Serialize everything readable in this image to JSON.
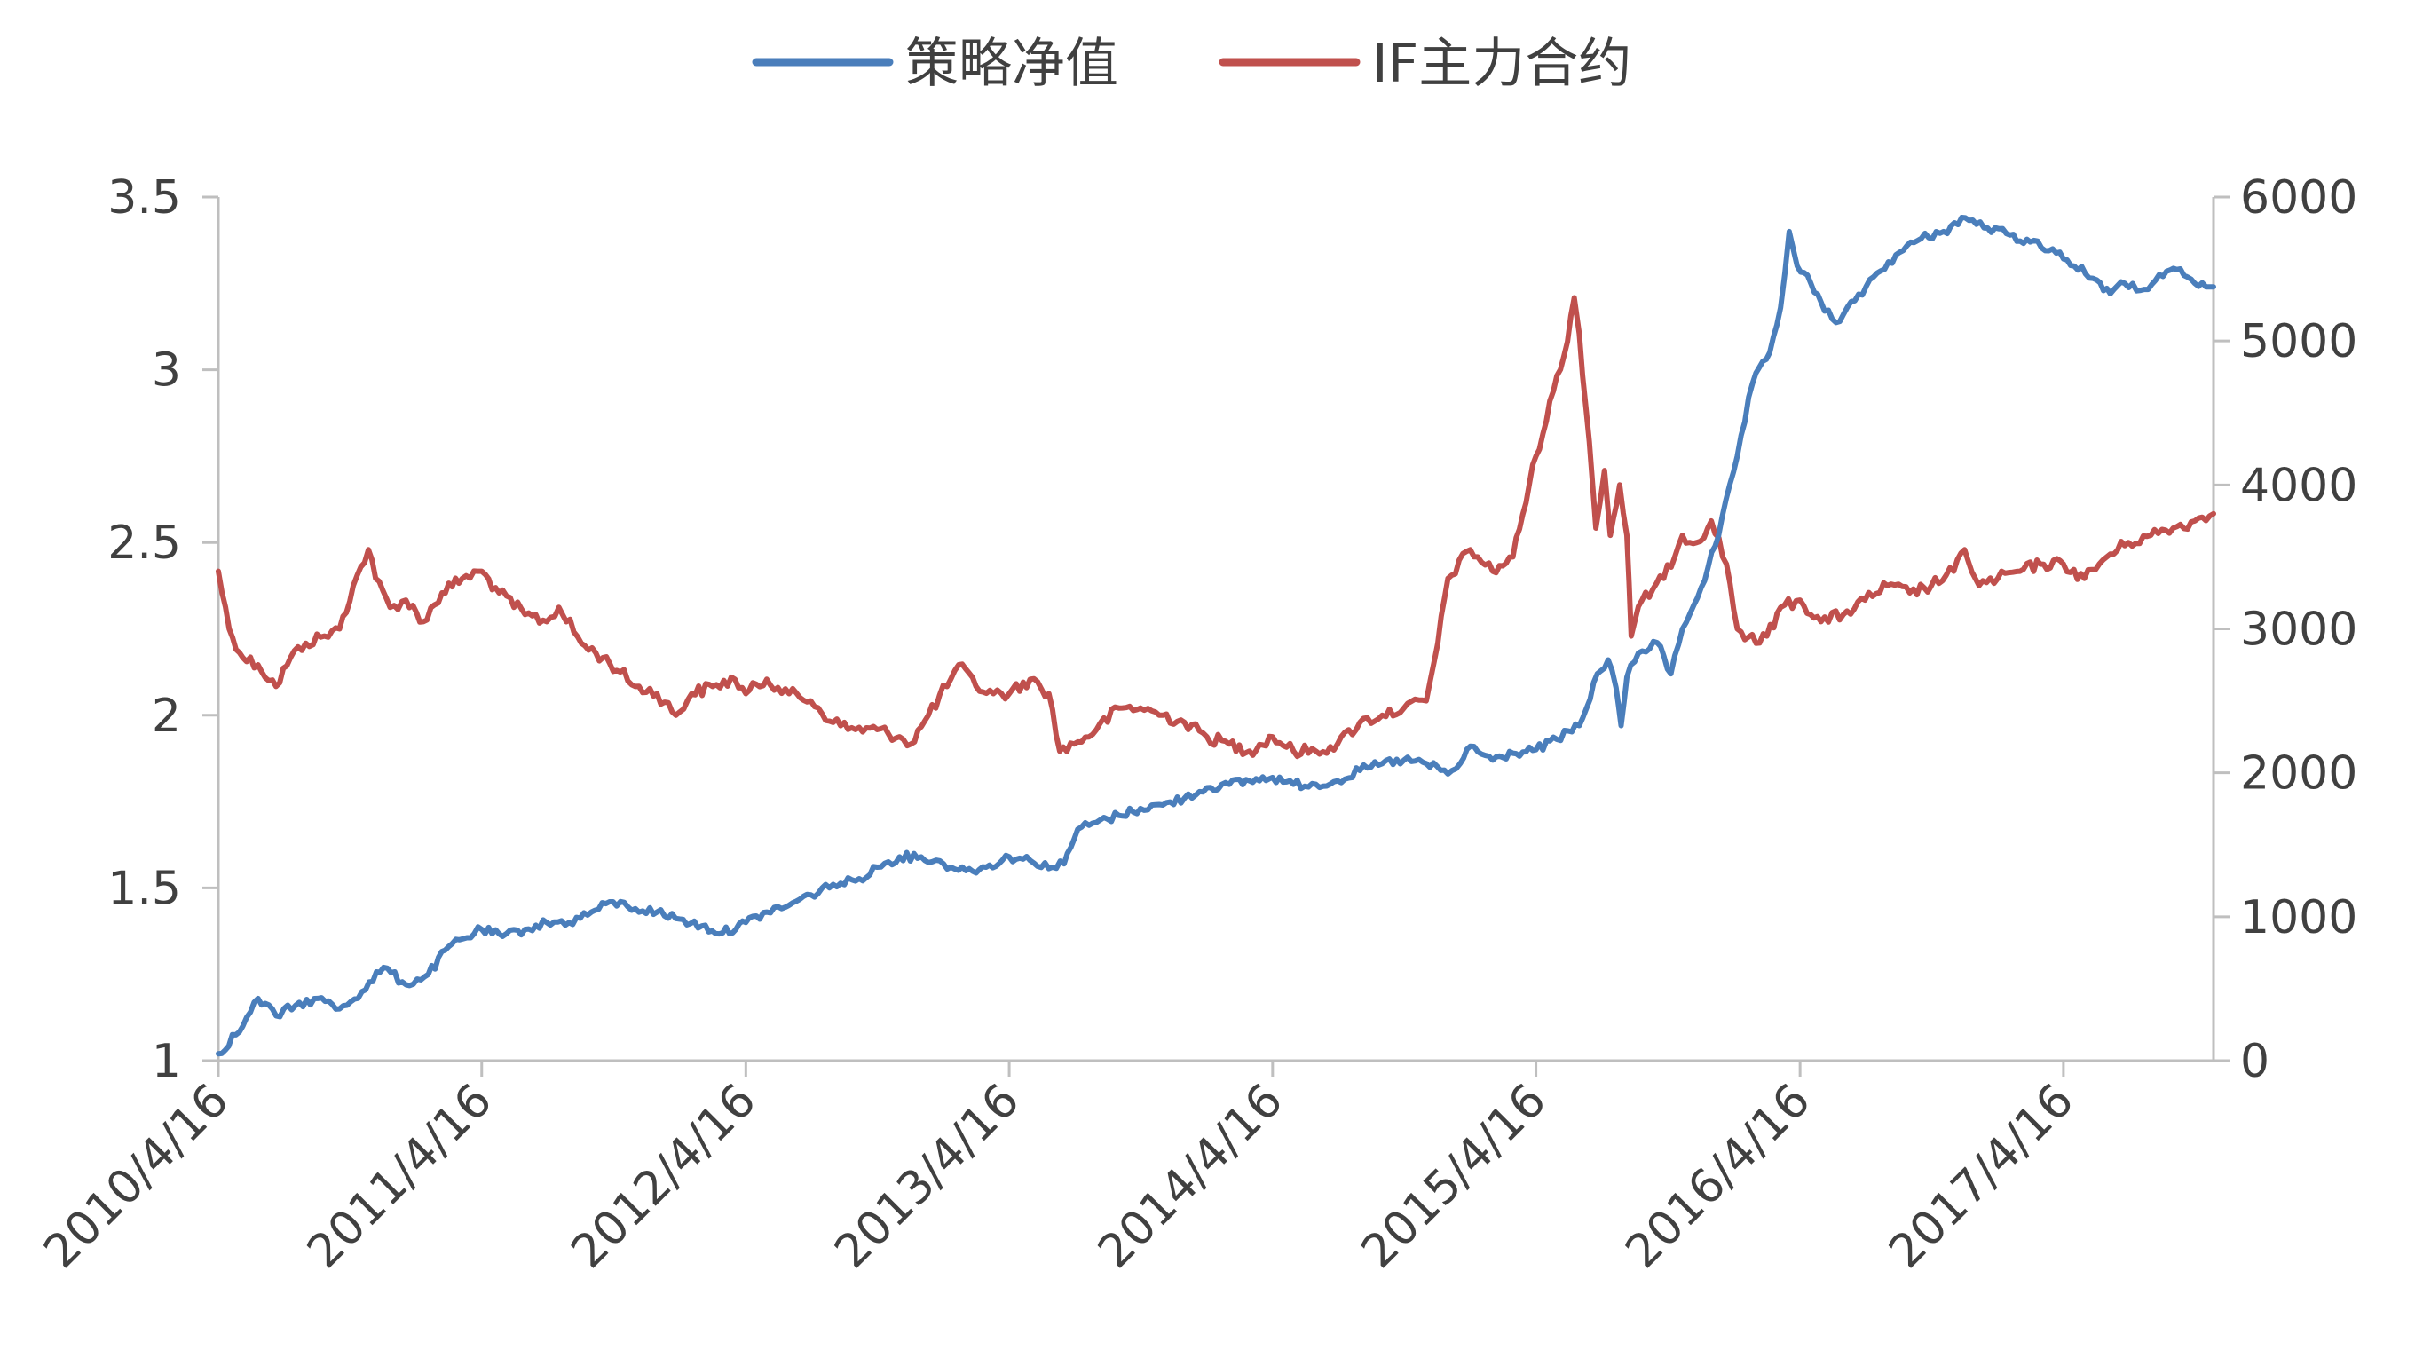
{
  "chart_data": {
    "type": "line",
    "title": "",
    "xlabel": "",
    "ylabel": "",
    "y2label": "",
    "grid": false,
    "legend_position": "top-center",
    "x_ticks": [
      "2010/4/16",
      "2011/4/16",
      "2012/4/16",
      "2013/4/16",
      "2014/4/16",
      "2015/4/16",
      "2016/4/16",
      "2017/4/16"
    ],
    "x_range": [
      "2010/4/16",
      "2017/11/10"
    ],
    "y_left": {
      "range": [
        1,
        3.5
      ],
      "ticks": [
        "1",
        "1.5",
        "2",
        "2.5",
        "3",
        "3.5"
      ]
    },
    "y_right": {
      "range": [
        0,
        6000
      ],
      "ticks": [
        "0",
        "1000",
        "2000",
        "3000",
        "4000",
        "5000",
        "6000"
      ]
    },
    "series": [
      {
        "name": "策略净值",
        "axis": "left",
        "color": "#4a7ebb",
        "points": [
          [
            "2010-04-16",
            1.02
          ],
          [
            "2010-05-20",
            1.1
          ],
          [
            "2010-06-10",
            1.18
          ],
          [
            "2010-07-05",
            1.13
          ],
          [
            "2010-08-01",
            1.16
          ],
          [
            "2010-09-01",
            1.18
          ],
          [
            "2010-10-01",
            1.15
          ],
          [
            "2010-11-01",
            1.2
          ],
          [
            "2010-12-01",
            1.27
          ],
          [
            "2011-01-01",
            1.22
          ],
          [
            "2011-02-01",
            1.25
          ],
          [
            "2011-03-01",
            1.33
          ],
          [
            "2011-04-16",
            1.38
          ],
          [
            "2011-05-15",
            1.36
          ],
          [
            "2011-06-15",
            1.38
          ],
          [
            "2011-07-15",
            1.4
          ],
          [
            "2011-08-15",
            1.4
          ],
          [
            "2011-09-15",
            1.43
          ],
          [
            "2011-10-15",
            1.46
          ],
          [
            "2011-11-15",
            1.44
          ],
          [
            "2011-12-15",
            1.43
          ],
          [
            "2012-01-15",
            1.41
          ],
          [
            "2012-02-15",
            1.39
          ],
          [
            "2012-03-15",
            1.37
          ],
          [
            "2012-04-16",
            1.4
          ],
          [
            "2012-05-15",
            1.43
          ],
          [
            "2012-06-15",
            1.45
          ],
          [
            "2012-07-15",
            1.48
          ],
          [
            "2012-08-15",
            1.51
          ],
          [
            "2012-09-15",
            1.52
          ],
          [
            "2012-10-15",
            1.56
          ],
          [
            "2012-11-15",
            1.59
          ],
          [
            "2012-12-15",
            1.59
          ],
          [
            "2013-01-15",
            1.57
          ],
          [
            "2013-02-15",
            1.55
          ],
          [
            "2013-03-15",
            1.56
          ],
          [
            "2013-04-16",
            1.59
          ],
          [
            "2013-05-15",
            1.58
          ],
          [
            "2013-06-15",
            1.56
          ],
          [
            "2013-07-01",
            1.57
          ],
          [
            "2013-07-20",
            1.67
          ],
          [
            "2013-08-15",
            1.69
          ],
          [
            "2013-09-15",
            1.71
          ],
          [
            "2013-10-15",
            1.73
          ],
          [
            "2013-11-15",
            1.74
          ],
          [
            "2013-12-15",
            1.76
          ],
          [
            "2014-01-15",
            1.79
          ],
          [
            "2014-02-15",
            1.8
          ],
          [
            "2014-03-15",
            1.81
          ],
          [
            "2014-04-16",
            1.82
          ],
          [
            "2014-05-15",
            1.8
          ],
          [
            "2014-06-15",
            1.8
          ],
          [
            "2014-07-15",
            1.81
          ],
          [
            "2014-08-15",
            1.84
          ],
          [
            "2014-09-15",
            1.86
          ],
          [
            "2014-10-15",
            1.87
          ],
          [
            "2014-11-15",
            1.86
          ],
          [
            "2014-12-15",
            1.83
          ],
          [
            "2015-01-01",
            1.86
          ],
          [
            "2015-01-15",
            1.91
          ],
          [
            "2015-02-15",
            1.87
          ],
          [
            "2015-03-15",
            1.89
          ],
          [
            "2015-04-16",
            1.9
          ],
          [
            "2015-05-15",
            1.93
          ],
          [
            "2015-06-15",
            1.97
          ],
          [
            "2015-06-25",
            2.02
          ],
          [
            "2015-07-10",
            2.12
          ],
          [
            "2015-07-25",
            2.16
          ],
          [
            "2015-08-05",
            2.08
          ],
          [
            "2015-08-12",
            1.97
          ],
          [
            "2015-08-20",
            2.11
          ],
          [
            "2015-09-05",
            2.18
          ],
          [
            "2015-10-01",
            2.21
          ],
          [
            "2015-10-20",
            2.12
          ],
          [
            "2015-11-05",
            2.25
          ],
          [
            "2015-12-01",
            2.37
          ],
          [
            "2015-12-25",
            2.52
          ],
          [
            "2016-01-20",
            2.75
          ],
          [
            "2016-02-10",
            2.96
          ],
          [
            "2016-03-05",
            3.05
          ],
          [
            "2016-03-20",
            3.18
          ],
          [
            "2016-04-01",
            3.4
          ],
          [
            "2016-04-12",
            3.3
          ],
          [
            "2016-05-01",
            3.25
          ],
          [
            "2016-05-20",
            3.17
          ],
          [
            "2016-06-10",
            3.14
          ],
          [
            "2016-07-01",
            3.2
          ],
          [
            "2016-08-01",
            3.28
          ],
          [
            "2016-09-01",
            3.34
          ],
          [
            "2016-10-01",
            3.38
          ],
          [
            "2016-11-01",
            3.4
          ],
          [
            "2016-12-01",
            3.44
          ],
          [
            "2017-01-01",
            3.41
          ],
          [
            "2017-02-01",
            3.39
          ],
          [
            "2017-03-01",
            3.37
          ],
          [
            "2017-04-01",
            3.35
          ],
          [
            "2017-05-01",
            3.3
          ],
          [
            "2017-06-01",
            3.26
          ],
          [
            "2017-06-20",
            3.22
          ],
          [
            "2017-07-10",
            3.25
          ],
          [
            "2017-08-01",
            3.23
          ],
          [
            "2017-09-01",
            3.27
          ],
          [
            "2017-09-20",
            3.29
          ],
          [
            "2017-10-15",
            3.25
          ],
          [
            "2017-11-10",
            3.24
          ]
        ]
      },
      {
        "name": "IF主力合约",
        "axis": "right",
        "color": "#c0504d",
        "points": [
          [
            "2010-04-16",
            3400
          ],
          [
            "2010-05-01",
            3000
          ],
          [
            "2010-05-20",
            2800
          ],
          [
            "2010-06-10",
            2750
          ],
          [
            "2010-07-05",
            2600
          ],
          [
            "2010-07-25",
            2800
          ],
          [
            "2010-08-15",
            2900
          ],
          [
            "2010-09-10",
            2950
          ],
          [
            "2010-10-01",
            3000
          ],
          [
            "2010-10-20",
            3300
          ],
          [
            "2010-11-10",
            3550
          ],
          [
            "2010-11-20",
            3350
          ],
          [
            "2010-12-10",
            3150
          ],
          [
            "2011-01-01",
            3200
          ],
          [
            "2011-01-25",
            3050
          ],
          [
            "2011-02-20",
            3250
          ],
          [
            "2011-03-20",
            3350
          ],
          [
            "2011-04-16",
            3400
          ],
          [
            "2011-05-10",
            3250
          ],
          [
            "2011-06-15",
            3100
          ],
          [
            "2011-07-15",
            3050
          ],
          [
            "2011-08-01",
            3150
          ],
          [
            "2011-09-01",
            2900
          ],
          [
            "2011-10-01",
            2800
          ],
          [
            "2011-10-25",
            2700
          ],
          [
            "2011-11-15",
            2600
          ],
          [
            "2011-12-15",
            2550
          ],
          [
            "2012-01-10",
            2400
          ],
          [
            "2012-02-01",
            2550
          ],
          [
            "2012-03-01",
            2600
          ],
          [
            "2012-04-01",
            2650
          ],
          [
            "2012-04-16",
            2550
          ],
          [
            "2012-05-15",
            2650
          ],
          [
            "2012-06-15",
            2550
          ],
          [
            "2012-07-15",
            2500
          ],
          [
            "2012-08-15",
            2350
          ],
          [
            "2012-09-15",
            2300
          ],
          [
            "2012-10-15",
            2300
          ],
          [
            "2012-11-15",
            2250
          ],
          [
            "2012-12-01",
            2200
          ],
          [
            "2012-12-25",
            2400
          ],
          [
            "2013-01-25",
            2650
          ],
          [
            "2013-02-05",
            2750
          ],
          [
            "2013-03-01",
            2600
          ],
          [
            "2013-03-25",
            2550
          ],
          [
            "2013-04-16",
            2550
          ],
          [
            "2013-05-15",
            2650
          ],
          [
            "2013-06-10",
            2550
          ],
          [
            "2013-06-25",
            2150
          ],
          [
            "2013-07-15",
            2200
          ],
          [
            "2013-08-15",
            2300
          ],
          [
            "2013-09-15",
            2450
          ],
          [
            "2013-10-15",
            2450
          ],
          [
            "2013-11-15",
            2400
          ],
          [
            "2013-12-15",
            2350
          ],
          [
            "2014-01-15",
            2250
          ],
          [
            "2014-02-15",
            2200
          ],
          [
            "2014-03-15",
            2150
          ],
          [
            "2014-04-16",
            2250
          ],
          [
            "2014-05-15",
            2150
          ],
          [
            "2014-06-15",
            2150
          ],
          [
            "2014-07-15",
            2200
          ],
          [
            "2014-08-15",
            2350
          ],
          [
            "2014-09-15",
            2400
          ],
          [
            "2014-10-15",
            2450
          ],
          [
            "2014-11-15",
            2500
          ],
          [
            "2014-12-01",
            2900
          ],
          [
            "2014-12-15",
            3350
          ],
          [
            "2015-01-15",
            3550
          ],
          [
            "2015-02-15",
            3400
          ],
          [
            "2015-03-15",
            3500
          ],
          [
            "2015-04-16",
            4200
          ],
          [
            "2015-05-10",
            4650
          ],
          [
            "2015-05-25",
            4900
          ],
          [
            "2015-06-08",
            5300
          ],
          [
            "2015-06-15",
            5050
          ],
          [
            "2015-06-29",
            4300
          ],
          [
            "2015-07-08",
            3700
          ],
          [
            "2015-07-20",
            4100
          ],
          [
            "2015-07-28",
            3650
          ],
          [
            "2015-08-10",
            4000
          ],
          [
            "2015-08-20",
            3650
          ],
          [
            "2015-08-26",
            2950
          ],
          [
            "2015-09-10",
            3200
          ],
          [
            "2015-10-10",
            3350
          ],
          [
            "2015-11-05",
            3650
          ],
          [
            "2015-11-25",
            3600
          ],
          [
            "2015-12-15",
            3750
          ],
          [
            "2016-01-05",
            3450
          ],
          [
            "2016-01-20",
            3000
          ],
          [
            "2016-02-15",
            2900
          ],
          [
            "2016-03-01",
            2950
          ],
          [
            "2016-03-20",
            3150
          ],
          [
            "2016-04-16",
            3200
          ],
          [
            "2016-05-15",
            3050
          ],
          [
            "2016-06-15",
            3100
          ],
          [
            "2016-07-15",
            3200
          ],
          [
            "2016-08-15",
            3300
          ],
          [
            "2016-09-15",
            3250
          ],
          [
            "2016-10-15",
            3300
          ],
          [
            "2016-11-15",
            3400
          ],
          [
            "2016-11-30",
            3550
          ],
          [
            "2016-12-20",
            3300
          ],
          [
            "2017-01-15",
            3350
          ],
          [
            "2017-02-15",
            3400
          ],
          [
            "2017-03-15",
            3450
          ],
          [
            "2017-04-16",
            3450
          ],
          [
            "2017-05-15",
            3350
          ],
          [
            "2017-06-15",
            3500
          ],
          [
            "2017-07-15",
            3600
          ],
          [
            "2017-08-15",
            3650
          ],
          [
            "2017-09-15",
            3700
          ],
          [
            "2017-10-15",
            3750
          ],
          [
            "2017-11-10",
            3800
          ]
        ]
      }
    ]
  }
}
